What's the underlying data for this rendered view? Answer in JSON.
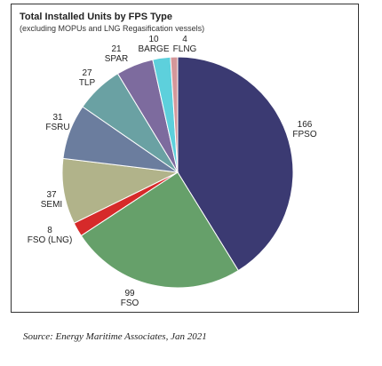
{
  "chart_data": {
    "type": "pie",
    "title": "Total Installed Units by FPS Type",
    "subtitle": "(excluding MOPUs and LNG Regasification vessels)",
    "categories": [
      "FPSO",
      "FSO",
      "FSO (LNG)",
      "SEMI",
      "FSRU",
      "TLP",
      "SPAR",
      "BARGE",
      "FLNG"
    ],
    "values": [
      166,
      99,
      8,
      37,
      31,
      27,
      21,
      10,
      4
    ],
    "colors": [
      "#3b3a72",
      "#66a06a",
      "#d62a2a",
      "#b1b38a",
      "#6b7d9e",
      "#6aa1a3",
      "#7d6b9e",
      "#5dd0dc",
      "#d4979a"
    ],
    "legend": "none"
  },
  "source": "Source: Energy Maritime Associates, Jan 2021"
}
